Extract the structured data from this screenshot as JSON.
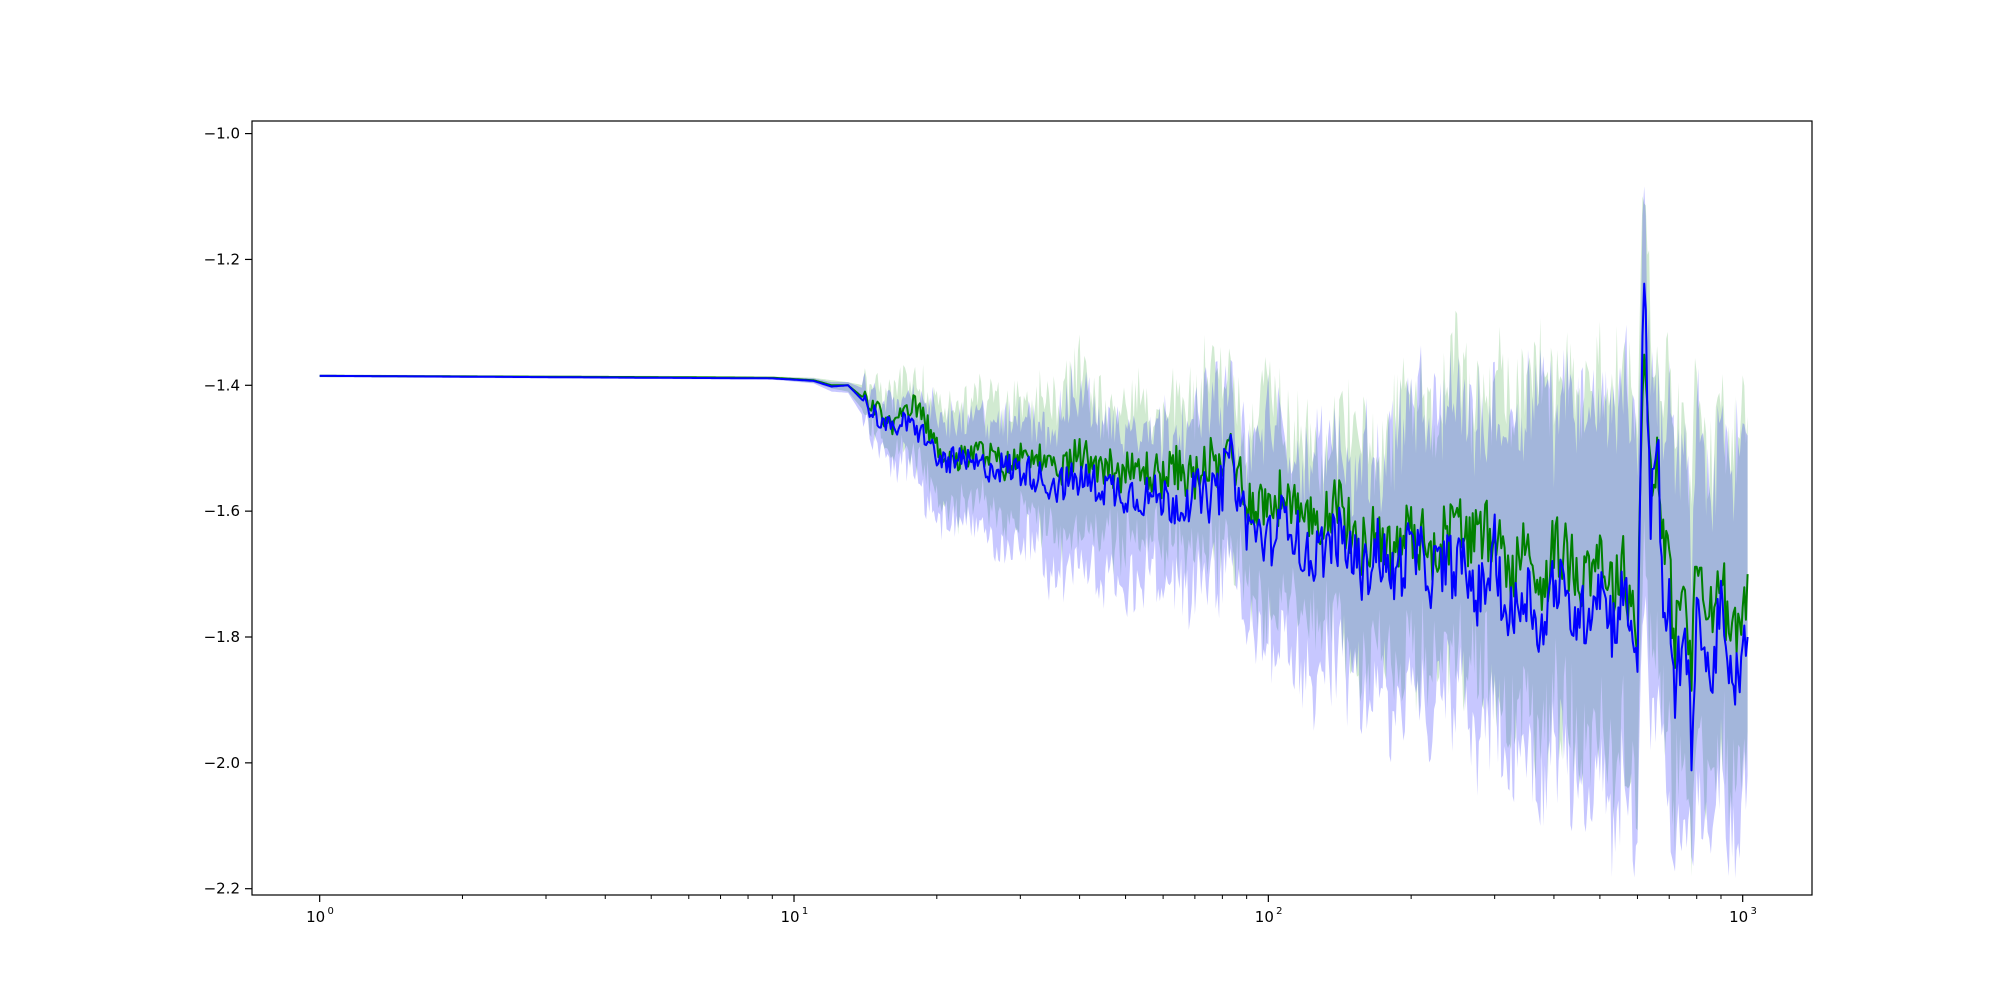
{
  "chart_data": {
    "type": "line",
    "title": "",
    "xlabel": "",
    "ylabel": "",
    "x_scale": "log",
    "xlim": [
      0.72,
      1400
    ],
    "ylim": [
      -2.21,
      -0.98
    ],
    "grid": false,
    "legend": "none",
    "x_ticks": [
      {
        "value": 1,
        "label": "10",
        "exp": "0"
      },
      {
        "value": 10,
        "label": "10",
        "exp": "1"
      },
      {
        "value": 100,
        "label": "10",
        "exp": "2"
      },
      {
        "value": 1000,
        "label": "10",
        "exp": "3"
      }
    ],
    "y_ticks": [
      {
        "value": -1.0,
        "label": "−1.0"
      },
      {
        "value": -1.2,
        "label": "−1.2"
      },
      {
        "value": -1.4,
        "label": "−1.4"
      },
      {
        "value": -1.6,
        "label": "−1.6"
      },
      {
        "value": -1.8,
        "label": "−1.8"
      },
      {
        "value": -2.0,
        "label": "−2.0"
      },
      {
        "value": -2.2,
        "label": "−2.2"
      }
    ],
    "series": [
      {
        "color": "#008000",
        "band_color": "#2ca02c",
        "x": [
          1,
          5,
          9,
          11,
          12,
          13,
          14,
          15,
          16,
          17,
          18,
          19,
          20,
          22,
          25,
          28,
          32,
          35,
          40,
          45,
          50,
          55,
          60,
          65,
          70,
          75,
          80,
          82,
          90,
          100,
          110,
          120,
          140,
          150,
          160,
          170,
          180,
          200,
          220,
          250,
          280,
          300,
          320,
          350,
          380,
          400,
          430,
          460,
          500,
          530,
          560,
          600,
          620,
          640,
          660,
          680,
          700,
          720,
          750,
          780,
          800,
          850,
          900,
          950,
          1000,
          1024
        ],
        "y": [
          -1.385,
          -1.387,
          -1.388,
          -1.392,
          -1.4,
          -1.4,
          -1.42,
          -1.44,
          -1.465,
          -1.45,
          -1.43,
          -1.46,
          -1.5,
          -1.52,
          -1.505,
          -1.53,
          -1.5,
          -1.545,
          -1.51,
          -1.525,
          -1.54,
          -1.535,
          -1.545,
          -1.53,
          -1.55,
          -1.52,
          -1.55,
          -1.48,
          -1.58,
          -1.59,
          -1.57,
          -1.63,
          -1.58,
          -1.64,
          -1.66,
          -1.62,
          -1.67,
          -1.63,
          -1.66,
          -1.62,
          -1.65,
          -1.62,
          -1.7,
          -1.66,
          -1.72,
          -1.65,
          -1.68,
          -1.7,
          -1.66,
          -1.72,
          -1.69,
          -1.78,
          -1.32,
          -1.55,
          -1.5,
          -1.65,
          -1.7,
          -1.8,
          -1.72,
          -1.85,
          -1.68,
          -1.78,
          -1.7,
          -1.82,
          -1.76,
          -1.7
        ],
        "upper": [
          -1.383,
          -1.385,
          -1.386,
          -1.388,
          -1.392,
          -1.395,
          -1.4,
          -1.41,
          -1.42,
          -1.4,
          -1.39,
          -1.41,
          -1.42,
          -1.43,
          -1.42,
          -1.44,
          -1.41,
          -1.45,
          -1.37,
          -1.43,
          -1.44,
          -1.42,
          -1.45,
          -1.42,
          -1.44,
          -1.37,
          -1.4,
          -1.38,
          -1.48,
          -1.4,
          -1.47,
          -1.5,
          -1.45,
          -1.5,
          -1.45,
          -1.5,
          -1.47,
          -1.38,
          -1.44,
          -1.35,
          -1.45,
          -1.38,
          -1.44,
          -1.38,
          -1.34,
          -1.42,
          -1.37,
          -1.4,
          -1.38,
          -1.43,
          -1.35,
          -1.44,
          -1.06,
          -1.3,
          -1.35,
          -1.45,
          -1.38,
          -1.5,
          -1.45,
          -1.6,
          -1.38,
          -1.55,
          -1.4,
          -1.55,
          -1.38,
          -1.45
        ],
        "lower": [
          -1.387,
          -1.389,
          -1.39,
          -1.396,
          -1.405,
          -1.41,
          -1.44,
          -1.47,
          -1.51,
          -1.5,
          -1.52,
          -1.55,
          -1.58,
          -1.6,
          -1.58,
          -1.62,
          -1.59,
          -1.65,
          -1.63,
          -1.64,
          -1.65,
          -1.64,
          -1.66,
          -1.64,
          -1.67,
          -1.65,
          -1.68,
          -1.62,
          -1.72,
          -1.75,
          -1.73,
          -1.8,
          -1.76,
          -1.82,
          -1.85,
          -1.8,
          -1.86,
          -1.84,
          -1.85,
          -1.83,
          -1.88,
          -1.84,
          -1.95,
          -1.9,
          -1.96,
          -1.88,
          -1.94,
          -1.98,
          -1.92,
          -2.0,
          -1.96,
          -2.05,
          -1.6,
          -1.85,
          -1.78,
          -1.92,
          -1.98,
          -2.05,
          -1.98,
          -2.1,
          -1.95,
          -2.05,
          -1.96,
          -2.08,
          -2.02,
          -1.95
        ]
      },
      {
        "color": "#0000ff",
        "band_color": "#0000ff",
        "x": [
          1,
          5,
          9,
          11,
          12,
          13,
          14,
          15,
          16,
          17,
          18,
          19,
          20,
          22,
          25,
          28,
          32,
          35,
          40,
          45,
          50,
          55,
          60,
          65,
          70,
          75,
          80,
          82,
          90,
          100,
          110,
          120,
          140,
          150,
          160,
          170,
          180,
          200,
          220,
          250,
          280,
          300,
          320,
          350,
          380,
          400,
          430,
          460,
          500,
          530,
          560,
          600,
          620,
          640,
          660,
          680,
          700,
          720,
          750,
          780,
          800,
          850,
          900,
          950,
          1000,
          1024
        ],
        "y": [
          -1.385,
          -1.388,
          -1.389,
          -1.393,
          -1.402,
          -1.4,
          -1.425,
          -1.45,
          -1.47,
          -1.46,
          -1.47,
          -1.48,
          -1.52,
          -1.52,
          -1.53,
          -1.53,
          -1.54,
          -1.56,
          -1.55,
          -1.56,
          -1.57,
          -1.575,
          -1.58,
          -1.59,
          -1.57,
          -1.58,
          -1.56,
          -1.5,
          -1.62,
          -1.65,
          -1.6,
          -1.68,
          -1.64,
          -1.67,
          -1.7,
          -1.65,
          -1.71,
          -1.66,
          -1.7,
          -1.68,
          -1.74,
          -1.66,
          -1.78,
          -1.72,
          -1.8,
          -1.7,
          -1.76,
          -1.77,
          -1.71,
          -1.78,
          -1.73,
          -1.82,
          -1.22,
          -1.6,
          -1.45,
          -1.8,
          -1.75,
          -1.9,
          -1.78,
          -1.96,
          -1.74,
          -1.88,
          -1.76,
          -1.9,
          -1.82,
          -1.8
        ],
        "upper": [
          -1.383,
          -1.386,
          -1.387,
          -1.389,
          -1.395,
          -1.395,
          -1.405,
          -1.42,
          -1.43,
          -1.42,
          -1.42,
          -1.43,
          -1.45,
          -1.46,
          -1.45,
          -1.47,
          -1.44,
          -1.48,
          -1.4,
          -1.46,
          -1.47,
          -1.45,
          -1.48,
          -1.45,
          -1.47,
          -1.4,
          -1.43,
          -1.4,
          -1.52,
          -1.45,
          -1.5,
          -1.52,
          -1.5,
          -1.53,
          -1.5,
          -1.52,
          -1.5,
          -1.42,
          -1.47,
          -1.4,
          -1.48,
          -1.42,
          -1.47,
          -1.42,
          -1.38,
          -1.45,
          -1.4,
          -1.43,
          -1.41,
          -1.46,
          -1.38,
          -1.48,
          -1.11,
          -1.36,
          -1.4,
          -1.5,
          -1.42,
          -1.55,
          -1.5,
          -1.65,
          -1.42,
          -1.6,
          -1.44,
          -1.6,
          -1.42,
          -1.48
        ],
        "lower": [
          -1.387,
          -1.39,
          -1.391,
          -1.397,
          -1.41,
          -1.412,
          -1.45,
          -1.49,
          -1.53,
          -1.52,
          -1.55,
          -1.58,
          -1.61,
          -1.63,
          -1.62,
          -1.66,
          -1.63,
          -1.7,
          -1.69,
          -1.7,
          -1.71,
          -1.7,
          -1.72,
          -1.7,
          -1.73,
          -1.71,
          -1.74,
          -1.66,
          -1.78,
          -1.82,
          -1.79,
          -1.87,
          -1.82,
          -1.88,
          -1.92,
          -1.86,
          -1.93,
          -1.9,
          -1.92,
          -1.9,
          -1.96,
          -1.91,
          -2.03,
          -1.97,
          -2.05,
          -1.96,
          -2.02,
          -2.06,
          -1.99,
          -2.08,
          -2.03,
          -2.12,
          -1.7,
          -1.95,
          -1.88,
          -2.02,
          -2.07,
          -2.14,
          -2.06,
          -2.15,
          -2.02,
          -2.12,
          -2.04,
          -2.14,
          -2.09,
          -2.02
        ]
      }
    ]
  }
}
